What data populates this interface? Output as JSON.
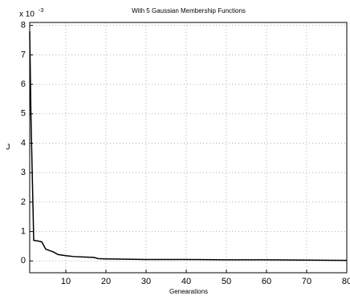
{
  "chart_data": {
    "type": "line",
    "title": "With 5 Gaussian Membership Functions",
    "x_label": "Genearations",
    "y_label": "J",
    "y_multiplier_base": "x 10",
    "y_multiplier_exponent": "-3",
    "x": [
      1,
      1.3,
      2,
      3,
      4,
      5,
      6,
      7,
      8,
      10,
      12,
      15,
      17,
      18,
      20,
      25,
      30,
      40,
      50,
      60,
      70,
      80
    ],
    "series": [
      {
        "color": "#000000",
        "values": [
          7.8,
          5,
          0.7,
          0.68,
          0.65,
          0.4,
          0.35,
          0.3,
          0.22,
          0.18,
          0.15,
          0.13,
          0.12,
          0.08,
          0.07,
          0.06,
          0.05,
          0.05,
          0.04,
          0.04,
          0.03,
          0.02
        ]
      }
    ],
    "xlim": [
      1,
      80
    ],
    "ylim": [
      -0.4,
      8.1
    ],
    "xticks": [
      10,
      20,
      30,
      40,
      50,
      60,
      70,
      80
    ],
    "yticks": [
      0,
      1,
      2,
      3,
      4,
      5,
      6,
      7,
      8
    ],
    "grid": true
  }
}
